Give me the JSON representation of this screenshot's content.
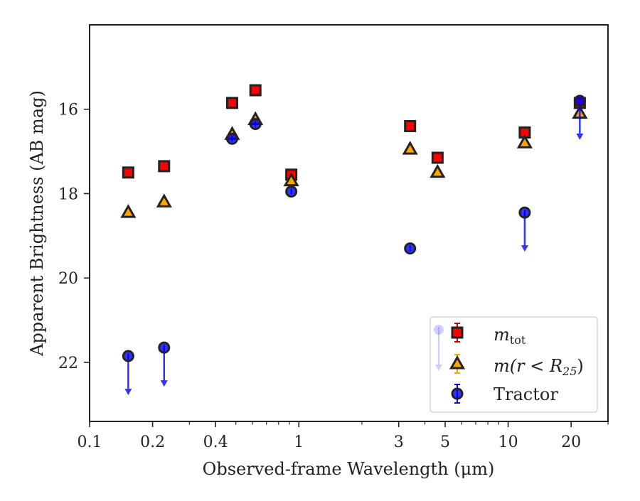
{
  "chart_data": {
    "type": "scatter",
    "xlabel": "Observed-frame Wavelength (μm)",
    "ylabel": "Apparent Brightness (AB mag)",
    "xscale": "log",
    "xlim": [
      0.1,
      30
    ],
    "ylim": [
      23.4,
      14.0
    ],
    "y_inverted": true,
    "x_ticks": [
      {
        "value": 0.1,
        "label": "0.1"
      },
      {
        "value": 0.2,
        "label": "0.2"
      },
      {
        "value": 0.4,
        "label": "0.4"
      },
      {
        "value": 1,
        "label": "1"
      },
      {
        "value": 3,
        "label": "3"
      },
      {
        "value": 5,
        "label": "5"
      },
      {
        "value": 10,
        "label": "10"
      },
      {
        "value": 20,
        "label": "20"
      }
    ],
    "x_minor_ticks": [
      0.3,
      0.5,
      0.6,
      0.7,
      0.8,
      0.9,
      2,
      4,
      6,
      7,
      8,
      9,
      30
    ],
    "y_ticks": [
      {
        "value": 16,
        "label": "16"
      },
      {
        "value": 18,
        "label": "18"
      },
      {
        "value": 20,
        "label": "20"
      },
      {
        "value": 22,
        "label": "22"
      }
    ],
    "legend_position": "lower-right",
    "series": [
      {
        "name": "m_tot",
        "legend_label": {
          "main": "m",
          "sub": "tot"
        },
        "marker": "square",
        "color": "#ff0000",
        "edge_color": "#222222",
        "error_color": "#cc0000",
        "points": [
          {
            "x": 0.153,
            "y": 17.5
          },
          {
            "x": 0.227,
            "y": 17.35
          },
          {
            "x": 0.48,
            "y": 15.85
          },
          {
            "x": 0.62,
            "y": 15.55
          },
          {
            "x": 0.92,
            "y": 17.55
          },
          {
            "x": 3.4,
            "y": 16.4
          },
          {
            "x": 4.6,
            "y": 17.15
          },
          {
            "x": 12.0,
            "y": 16.55
          },
          {
            "x": 22.0,
            "y": 15.85
          }
        ]
      },
      {
        "name": "m(r < R_25)",
        "legend_label": {
          "main": "m(r < R",
          "sub": "25",
          "tail": ")"
        },
        "marker": "triangle",
        "color": "#ffa500",
        "edge_color": "#222222",
        "error_color": "#ffa500",
        "points": [
          {
            "x": 0.153,
            "y": 18.45
          },
          {
            "x": 0.227,
            "y": 18.2
          },
          {
            "x": 0.48,
            "y": 16.6
          },
          {
            "x": 0.62,
            "y": 16.25
          },
          {
            "x": 0.92,
            "y": 17.7
          },
          {
            "x": 3.4,
            "y": 16.95
          },
          {
            "x": 4.6,
            "y": 17.5
          },
          {
            "x": 12.0,
            "y": 16.8
          },
          {
            "x": 22.0,
            "y": 16.1
          }
        ]
      },
      {
        "name": "Tractor",
        "legend_label": {
          "main": "Tractor"
        },
        "marker": "circle",
        "color": "#0000ff",
        "edge_color": "#222222",
        "error_color": "#0000ff",
        "points": [
          {
            "x": 0.153,
            "y": 21.85,
            "upper_limit": true
          },
          {
            "x": 0.227,
            "y": 21.65,
            "upper_limit": true
          },
          {
            "x": 0.48,
            "y": 16.7
          },
          {
            "x": 0.62,
            "y": 16.35
          },
          {
            "x": 0.92,
            "y": 17.95
          },
          {
            "x": 3.4,
            "y": 19.3
          },
          {
            "x": 12.0,
            "y": 18.45,
            "upper_limit": true
          },
          {
            "x": 22.0,
            "y": 15.8,
            "upper_limit": true
          }
        ]
      }
    ]
  }
}
